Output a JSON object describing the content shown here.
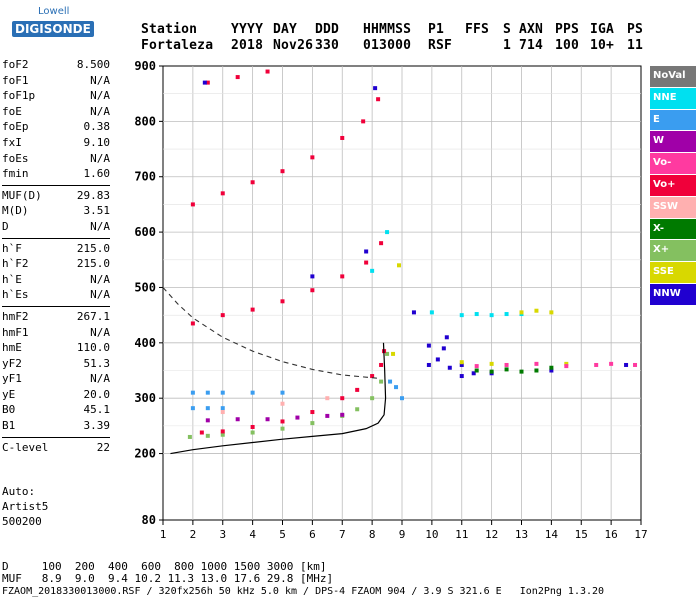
{
  "logo": {
    "brand_top": "Lowell",
    "brand_main": "DIGISONDE"
  },
  "header": {
    "labels": [
      "Station",
      "YYYY",
      "DAY",
      "DDD",
      "HHMMSS",
      "P1",
      "FFS",
      "S",
      "AXN",
      "PPS",
      "IGA",
      "PS"
    ],
    "values": [
      "Fortaleza",
      "2018",
      "Nov26",
      "330",
      "013000",
      "RSF",
      "",
      "1",
      "714",
      "100",
      "10+",
      "11"
    ]
  },
  "params": [
    [
      {
        "k": "foF2",
        "v": "8.500"
      },
      {
        "k": "foF1",
        "v": "N/A"
      },
      {
        "k": "foF1p",
        "v": "N/A"
      },
      {
        "k": "foE",
        "v": "N/A"
      },
      {
        "k": "foEp",
        "v": "0.38"
      },
      {
        "k": "fxI",
        "v": "9.10"
      },
      {
        "k": "foEs",
        "v": "N/A"
      },
      {
        "k": "fmin",
        "v": "1.60"
      }
    ],
    [
      {
        "k": "MUF(D)",
        "v": "29.83"
      },
      {
        "k": "M(D)",
        "v": "3.51"
      },
      {
        "k": "D",
        "v": "N/A"
      }
    ],
    [
      {
        "k": "h`F",
        "v": "215.0"
      },
      {
        "k": "h`F2",
        "v": "215.0"
      },
      {
        "k": "h`E",
        "v": "N/A"
      },
      {
        "k": "h`Es",
        "v": "N/A"
      }
    ],
    [
      {
        "k": "hmF2",
        "v": "267.1"
      },
      {
        "k": "hmF1",
        "v": "N/A"
      },
      {
        "k": "hmE",
        "v": "110.0"
      },
      {
        "k": "yF2",
        "v": "51.3"
      },
      {
        "k": "yF1",
        "v": "N/A"
      },
      {
        "k": "yE",
        "v": "20.0"
      },
      {
        "k": "B0",
        "v": "45.1"
      },
      {
        "k": "B1",
        "v": "3.39"
      }
    ],
    [
      {
        "k": "C-level",
        "v": "22"
      }
    ]
  ],
  "auto": {
    "line1": "Auto:",
    "line2": "Artist5",
    "line3": "500200"
  },
  "legend": [
    {
      "label": "NoVal",
      "bg": "#777777",
      "fg": "#ffffff"
    },
    {
      "label": "NNE",
      "bg": "#00e0f0",
      "fg": "#ffffff"
    },
    {
      "label": "E",
      "bg": "#3a9df0",
      "fg": "#ffffff"
    },
    {
      "label": "W",
      "bg": "#a000a8",
      "fg": "#ffffff"
    },
    {
      "label": "Vo-",
      "bg": "#ff3aa0",
      "fg": "#ffffff"
    },
    {
      "label": "Vo+",
      "bg": "#f0003a",
      "fg": "#ffffff"
    },
    {
      "label": "SSW",
      "bg": "#ffb0b0",
      "fg": "#ffffff"
    },
    {
      "label": "X-",
      "bg": "#007a00",
      "fg": "#ffffff"
    },
    {
      "label": "X+",
      "bg": "#84c060",
      "fg": "#ffffff"
    },
    {
      "label": "SSE",
      "bg": "#d8d800",
      "fg": "#ffffff"
    },
    {
      "label": "NNW",
      "bg": "#2000d0",
      "fg": "#ffffff"
    }
  ],
  "footer": {
    "d_row": "D     100  200  400  600  800 1000 1500 3000 [km]",
    "muf_row": "MUF   8.9  9.0  9.4 10.2 11.3 13.0 17.6 29.8 [MHz]",
    "info_row": "FZAOM_2018330013000.RSF / 320fx256h 50 kHz 5.0 km / DPS-4 FZAOM 904 / 3.9 S 321.6 E   Ion2Png 1.3.20"
  },
  "chart_data": {
    "type": "scatter",
    "title": "",
    "xlabel": "",
    "ylabel": "",
    "xlim": [
      1,
      17
    ],
    "ylim": [
      80,
      900
    ],
    "x_ticks": [
      1,
      2,
      3,
      4,
      5,
      6,
      7,
      8,
      9,
      10,
      11,
      12,
      13,
      14,
      15,
      16,
      17
    ],
    "y_ticks": [
      80,
      200,
      300,
      400,
      500,
      600,
      700,
      800,
      900
    ],
    "grid": true,
    "series": [
      {
        "name": "X+",
        "color": "#84c060",
        "points": [
          [
            1.9,
            230
          ],
          [
            2.5,
            232
          ],
          [
            3.0,
            234
          ],
          [
            4.0,
            238
          ],
          [
            5.0,
            245
          ],
          [
            6.0,
            255
          ],
          [
            7.0,
            268
          ],
          [
            7.5,
            280
          ],
          [
            8.0,
            300
          ],
          [
            8.3,
            330
          ],
          [
            8.5,
            380
          ]
        ]
      },
      {
        "name": "Vo+",
        "color": "#f0003a",
        "points": [
          [
            2.3,
            238
          ],
          [
            3.0,
            240
          ],
          [
            4.0,
            248
          ],
          [
            5.0,
            258
          ],
          [
            6.0,
            275
          ],
          [
            7.0,
            300
          ],
          [
            7.5,
            315
          ],
          [
            8.0,
            340
          ],
          [
            8.3,
            360
          ],
          [
            8.4,
            385
          ],
          [
            2.0,
            435
          ],
          [
            3.0,
            450
          ],
          [
            4.0,
            460
          ],
          [
            5.0,
            475
          ],
          [
            6.0,
            495
          ],
          [
            7.0,
            520
          ],
          [
            7.8,
            545
          ],
          [
            8.3,
            580
          ],
          [
            2.0,
            650
          ],
          [
            3.0,
            670
          ],
          [
            4.0,
            690
          ],
          [
            5.0,
            710
          ],
          [
            6.0,
            735
          ],
          [
            7.0,
            770
          ],
          [
            7.7,
            800
          ],
          [
            8.2,
            840
          ],
          [
            2.5,
            870
          ],
          [
            3.5,
            880
          ],
          [
            4.5,
            890
          ]
        ]
      },
      {
        "name": "E",
        "color": "#3a9df0",
        "points": [
          [
            2.0,
            310
          ],
          [
            2.5,
            310
          ],
          [
            3.0,
            310
          ],
          [
            4.0,
            310
          ],
          [
            5.0,
            310
          ],
          [
            2.0,
            282
          ],
          [
            2.5,
            282
          ],
          [
            3.0,
            282
          ],
          [
            8.8,
            320
          ],
          [
            9.0,
            300
          ],
          [
            8.6,
            330
          ]
        ]
      },
      {
        "name": "W",
        "color": "#a000a8",
        "points": [
          [
            2.5,
            260
          ],
          [
            3.5,
            262
          ],
          [
            4.5,
            262
          ],
          [
            5.5,
            265
          ],
          [
            6.5,
            268
          ],
          [
            7.0,
            270
          ]
        ]
      },
      {
        "name": "NNW",
        "color": "#2000d0",
        "points": [
          [
            9.9,
            360
          ],
          [
            10.2,
            370
          ],
          [
            10.6,
            355
          ],
          [
            11.0,
            360
          ],
          [
            11.4,
            345
          ],
          [
            9.9,
            395
          ],
          [
            10.4,
            390
          ],
          [
            11.0,
            340
          ],
          [
            12.0,
            345
          ],
          [
            14.0,
            350
          ],
          [
            16.5,
            360
          ],
          [
            6.0,
            520
          ],
          [
            7.8,
            565
          ],
          [
            8.1,
            860
          ],
          [
            2.4,
            870
          ],
          [
            10.5,
            410
          ],
          [
            9.4,
            455
          ]
        ]
      },
      {
        "name": "NNE",
        "color": "#00e0f0",
        "points": [
          [
            10.0,
            455
          ],
          [
            11.0,
            450
          ],
          [
            11.5,
            452
          ],
          [
            12.0,
            450
          ],
          [
            12.5,
            452
          ],
          [
            13.0,
            452
          ],
          [
            8.0,
            530
          ],
          [
            8.5,
            600
          ]
        ]
      },
      {
        "name": "X-",
        "color": "#007a00",
        "points": [
          [
            11.5,
            350
          ],
          [
            12.0,
            348
          ],
          [
            12.5,
            352
          ],
          [
            13.0,
            348
          ],
          [
            13.5,
            350
          ],
          [
            14.0,
            355
          ]
        ]
      },
      {
        "name": "SSE",
        "color": "#d8d800",
        "points": [
          [
            13.0,
            455
          ],
          [
            13.5,
            458
          ],
          [
            14.0,
            455
          ],
          [
            11.0,
            365
          ],
          [
            12.0,
            362
          ],
          [
            14.5,
            362
          ],
          [
            8.7,
            380
          ],
          [
            8.9,
            540
          ]
        ]
      },
      {
        "name": "Vo-",
        "color": "#ff3aa0",
        "points": [
          [
            11.5,
            358
          ],
          [
            12.5,
            360
          ],
          [
            13.5,
            362
          ],
          [
            14.5,
            358
          ],
          [
            15.5,
            360
          ],
          [
            16.0,
            362
          ],
          [
            16.8,
            360
          ]
        ]
      },
      {
        "name": "SSW",
        "color": "#ffb0b0",
        "points": [
          [
            3.0,
            275
          ],
          [
            5.0,
            290
          ],
          [
            6.5,
            300
          ]
        ]
      }
    ],
    "curves": {
      "true_height": [
        [
          1.25,
          200
        ],
        [
          2.0,
          207
        ],
        [
          3.0,
          214
        ],
        [
          4.0,
          220
        ],
        [
          5.0,
          226
        ],
        [
          6.0,
          231
        ],
        [
          7.0,
          236
        ],
        [
          7.8,
          245
        ],
        [
          8.2,
          255
        ],
        [
          8.4,
          270
        ],
        [
          8.45,
          300
        ],
        [
          8.42,
          350
        ],
        [
          8.38,
          400
        ]
      ],
      "model_dashed": [
        [
          1.0,
          500
        ],
        [
          1.5,
          470
        ],
        [
          2.0,
          445
        ],
        [
          3.0,
          410
        ],
        [
          4.0,
          385
        ],
        [
          5.0,
          366
        ],
        [
          6.0,
          352
        ],
        [
          7.0,
          342
        ],
        [
          7.8,
          338
        ],
        [
          8.2,
          336
        ]
      ]
    }
  }
}
